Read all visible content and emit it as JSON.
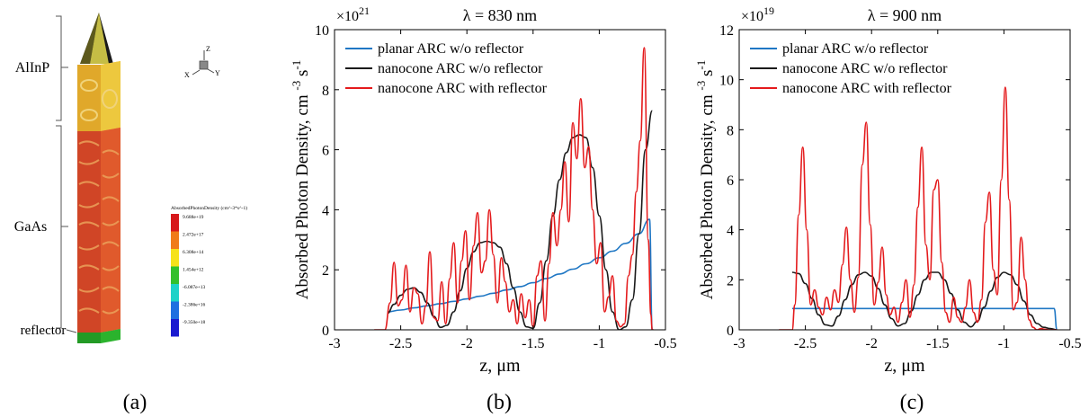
{
  "figure": {
    "panel_labels": [
      "(a)",
      "(b)",
      "(c)"
    ]
  },
  "structure": {
    "region_labels": [
      "AlInP",
      "GaAs",
      "reflector"
    ],
    "axes_triad": {
      "z": "Z",
      "x": "X",
      "y": "Y"
    },
    "colorbar": {
      "title": "AbsorbedPhotonDensity (cm^-3*s^-1)",
      "ticks": [
        "9.688e+19",
        "2.472e+17",
        "6.308e+14",
        "1.454e+12",
        "-6.087e+13",
        "-2.386e+16",
        "-9.350e+18"
      ],
      "colors": [
        "#d7191c",
        "#f07c1a",
        "#f6e21a",
        "#33c02c",
        "#1ed2c8",
        "#1f6fe0",
        "#1a1ad0"
      ]
    },
    "colors": {
      "nanocone": "#d8cf4a",
      "cone_body": "#1a1a1a",
      "alinp": "#e2b732",
      "gaas": "#d94b2a",
      "reflector": "#2bb32d"
    }
  },
  "chart_data": [
    {
      "type": "line",
      "title": "λ = 830 nm",
      "xlabel": "z, μm",
      "ylabel": "Absorbed Photon Density, cm",
      "ylabel_units": [
        "-3",
        "s",
        "-1"
      ],
      "multiplier": {
        "base": "×10",
        "exp": "21"
      },
      "xlim": [
        -3,
        -0.5
      ],
      "ylim": [
        0,
        10
      ],
      "xticks": [
        -3,
        -2.5,
        -2,
        -1.5,
        -1,
        -0.5
      ],
      "xtick_labels": [
        "-3",
        "-2.5",
        "-2",
        "-1.5",
        "-1",
        "-0.5"
      ],
      "yticks": [
        0,
        2,
        4,
        6,
        8,
        10
      ],
      "ytick_labels": [
        "0",
        "2",
        "4",
        "6",
        "8",
        "10"
      ],
      "grid": false,
      "legend_position": "top-left",
      "series": [
        {
          "name": "planar ARC w/o reflector",
          "color": "#1f77c4",
          "x": [
            -2.6,
            -2.5,
            -2.4,
            -2.3,
            -2.2,
            -2.1,
            -2.0,
            -1.9,
            -1.8,
            -1.7,
            -1.6,
            -1.5,
            -1.4,
            -1.3,
            -1.2,
            -1.1,
            -1.0,
            -0.9,
            -0.8,
            -0.7,
            -0.62,
            -0.6
          ],
          "y": [
            0.6,
            0.66,
            0.73,
            0.8,
            0.87,
            0.95,
            1.03,
            1.12,
            1.22,
            1.33,
            1.44,
            1.57,
            1.71,
            1.86,
            2.02,
            2.2,
            2.4,
            2.62,
            2.88,
            3.2,
            3.68,
            0.0
          ]
        },
        {
          "name": "nanocone ARC w/o reflector",
          "color": "#1a1a1a",
          "x": [
            -2.6,
            -2.55,
            -2.5,
            -2.45,
            -2.4,
            -2.35,
            -2.3,
            -2.25,
            -2.2,
            -2.15,
            -2.1,
            -2.05,
            -2.0,
            -1.95,
            -1.9,
            -1.85,
            -1.8,
            -1.75,
            -1.7,
            -1.65,
            -1.6,
            -1.55,
            -1.5,
            -1.45,
            -1.4,
            -1.35,
            -1.3,
            -1.25,
            -1.2,
            -1.15,
            -1.1,
            -1.05,
            -1.0,
            -0.95,
            -0.9,
            -0.85,
            -0.8,
            -0.75,
            -0.7,
            -0.65,
            -0.6
          ],
          "y": [
            0.55,
            0.85,
            1.15,
            1.35,
            1.4,
            1.25,
            0.9,
            0.45,
            0.08,
            0.15,
            0.6,
            1.3,
            2.05,
            2.6,
            2.9,
            2.95,
            2.9,
            2.75,
            2.2,
            1.4,
            0.6,
            0.1,
            0.05,
            0.9,
            2.3,
            3.8,
            5.0,
            5.9,
            6.4,
            6.5,
            6.4,
            5.4,
            3.8,
            2.0,
            0.6,
            0.0,
            0.1,
            1.0,
            3.2,
            6.0,
            7.3
          ]
        },
        {
          "name": "nanocone ARC with reflector",
          "color": "#e41a1c",
          "x": [
            -2.7,
            -2.62,
            -2.58,
            -2.55,
            -2.52,
            -2.49,
            -2.46,
            -2.43,
            -2.4,
            -2.37,
            -2.34,
            -2.31,
            -2.28,
            -2.25,
            -2.22,
            -2.19,
            -2.16,
            -2.13,
            -2.1,
            -2.07,
            -2.04,
            -2.01,
            -1.98,
            -1.95,
            -1.92,
            -1.89,
            -1.86,
            -1.83,
            -1.8,
            -1.77,
            -1.74,
            -1.71,
            -1.68,
            -1.65,
            -1.62,
            -1.59,
            -1.56,
            -1.53,
            -1.5,
            -1.47,
            -1.44,
            -1.41,
            -1.38,
            -1.35,
            -1.32,
            -1.29,
            -1.26,
            -1.23,
            -1.2,
            -1.17,
            -1.14,
            -1.11,
            -1.08,
            -1.05,
            -1.02,
            -0.99,
            -0.96,
            -0.93,
            -0.9,
            -0.87,
            -0.84,
            -0.81,
            -0.78,
            -0.75,
            -0.72,
            -0.69,
            -0.66,
            -0.63,
            -0.61,
            -0.6,
            -0.59
          ],
          "y": [
            0.0,
            0.0,
            0.9,
            2.25,
            0.8,
            1.0,
            2.15,
            0.6,
            1.4,
            1.2,
            0.2,
            0.8,
            2.6,
            0.4,
            0.3,
            1.6,
            0.2,
            1.7,
            2.9,
            0.9,
            2.3,
            3.3,
            1.0,
            2.8,
            3.9,
            1.9,
            2.3,
            4.0,
            2.5,
            0.9,
            2.4,
            1.6,
            0.6,
            1.0,
            0.2,
            1.2,
            0.4,
            1.0,
            0.1,
            1.8,
            2.3,
            0.3,
            2.2,
            3.9,
            2.8,
            4.0,
            5.6,
            3.6,
            6.9,
            5.7,
            7.7,
            5.4,
            6.1,
            4.0,
            2.2,
            2.9,
            0.6,
            1.1,
            1.8,
            0.3,
            0.1,
            0.2,
            1.8,
            2.5,
            4.6,
            6.3,
            9.4,
            3.0,
            0.5,
            0.0,
            0.0
          ]
        }
      ]
    },
    {
      "type": "line",
      "title": "λ = 900 nm",
      "xlabel": "z, μm",
      "ylabel": "Absorbed Photon Density, cm",
      "ylabel_units": [
        "-3",
        "s",
        "-1"
      ],
      "multiplier": {
        "base": "×10",
        "exp": "19"
      },
      "xlim": [
        -3,
        -0.5
      ],
      "ylim": [
        0,
        12
      ],
      "xticks": [
        -3,
        -2.5,
        -2,
        -1.5,
        -1,
        -0.5
      ],
      "xtick_labels": [
        "-3",
        "-2.5",
        "-2",
        "-1.5",
        "-1",
        "-0.5"
      ],
      "yticks": [
        0,
        2,
        4,
        6,
        8,
        10,
        12
      ],
      "ytick_labels": [
        "0",
        "2",
        "4",
        "6",
        "8",
        "10",
        "12"
      ],
      "grid": false,
      "legend_position": "top-left",
      "series": [
        {
          "name": "planar ARC w/o reflector",
          "color": "#1f77c4",
          "x": [
            -2.6,
            -2.0,
            -1.5,
            -1.0,
            -0.62,
            -0.6
          ],
          "y": [
            0.85,
            0.85,
            0.85,
            0.85,
            0.85,
            0.0
          ]
        },
        {
          "name": "nanocone ARC w/o reflector",
          "color": "#1a1a1a",
          "x": [
            -2.6,
            -2.55,
            -2.5,
            -2.45,
            -2.4,
            -2.35,
            -2.3,
            -2.25,
            -2.2,
            -2.15,
            -2.1,
            -2.05,
            -2.0,
            -1.95,
            -1.9,
            -1.85,
            -1.8,
            -1.75,
            -1.7,
            -1.65,
            -1.6,
            -1.55,
            -1.5,
            -1.45,
            -1.4,
            -1.35,
            -1.3,
            -1.25,
            -1.2,
            -1.15,
            -1.1,
            -1.05,
            -1.0,
            -0.95,
            -0.9,
            -0.85,
            -0.8,
            -0.75,
            -0.7,
            -0.65,
            -0.6
          ],
          "y": [
            2.3,
            2.25,
            1.85,
            1.25,
            0.6,
            0.2,
            0.15,
            0.55,
            1.2,
            1.8,
            2.2,
            2.3,
            2.15,
            1.65,
            1.0,
            0.45,
            0.15,
            0.25,
            0.75,
            1.4,
            2.0,
            2.3,
            2.3,
            2.0,
            1.45,
            0.8,
            0.3,
            0.12,
            0.35,
            0.9,
            1.55,
            2.1,
            2.3,
            2.2,
            1.8,
            1.15,
            0.6,
            0.25,
            0.1,
            0.05,
            0.0
          ]
        },
        {
          "name": "nanocone ARC with reflector",
          "color": "#e41a1c",
          "x": [
            -2.7,
            -2.6,
            -2.58,
            -2.55,
            -2.52,
            -2.49,
            -2.46,
            -2.43,
            -2.4,
            -2.37,
            -2.34,
            -2.31,
            -2.28,
            -2.25,
            -2.22,
            -2.19,
            -2.16,
            -2.13,
            -2.1,
            -2.07,
            -2.04,
            -2.01,
            -1.98,
            -1.95,
            -1.92,
            -1.89,
            -1.86,
            -1.83,
            -1.8,
            -1.77,
            -1.74,
            -1.71,
            -1.68,
            -1.65,
            -1.62,
            -1.59,
            -1.56,
            -1.53,
            -1.5,
            -1.47,
            -1.44,
            -1.41,
            -1.38,
            -1.35,
            -1.32,
            -1.29,
            -1.26,
            -1.23,
            -1.2,
            -1.17,
            -1.14,
            -1.11,
            -1.08,
            -1.05,
            -1.02,
            -0.99,
            -0.96,
            -0.93,
            -0.9,
            -0.87,
            -0.84,
            -0.81,
            -0.78,
            -0.75,
            -0.72,
            -0.69,
            -0.66,
            -0.63,
            -0.6
          ],
          "y": [
            0.0,
            0.0,
            1.0,
            4.6,
            7.3,
            4.0,
            1.0,
            1.6,
            0.9,
            0.6,
            1.3,
            0.8,
            1.6,
            1.1,
            2.6,
            4.1,
            2.0,
            0.7,
            2.1,
            6.6,
            8.3,
            4.2,
            1.0,
            1.9,
            3.3,
            1.4,
            0.6,
            0.9,
            0.3,
            1.1,
            2.0,
            0.5,
            1.8,
            4.9,
            7.3,
            3.4,
            2.0,
            5.6,
            6.0,
            2.7,
            0.7,
            0.3,
            1.3,
            0.5,
            0.3,
            0.9,
            2.0,
            0.7,
            0.3,
            1.2,
            4.3,
            5.5,
            2.4,
            1.4,
            6.0,
            9.7,
            5.2,
            0.8,
            1.1,
            3.7,
            2.0,
            0.4,
            0.1,
            0.0,
            0.05,
            0.02,
            0.0,
            0.0,
            0.0
          ]
        }
      ]
    }
  ]
}
